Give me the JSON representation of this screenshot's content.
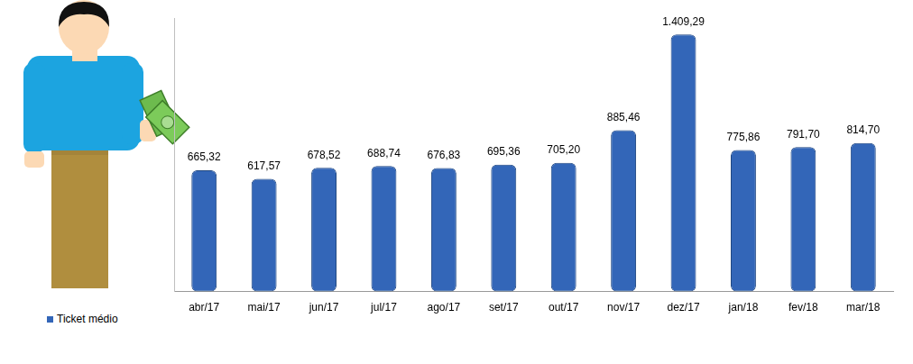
{
  "chart_data": {
    "type": "bar",
    "categories": [
      "abr/17",
      "mai/17",
      "jun/17",
      "jul/17",
      "ago/17",
      "set/17",
      "out/17",
      "nov/17",
      "dez/17",
      "jan/18",
      "fev/18",
      "mar/18"
    ],
    "series": [
      {
        "name": "Ticket médio",
        "color": "#3366b8",
        "values": [
          665.32,
          617.57,
          678.52,
          688.74,
          676.83,
          695.36,
          705.2,
          885.46,
          1409.29,
          775.86,
          791.7,
          814.7
        ],
        "value_labels": [
          "665,32",
          "617,57",
          "678,52",
          "688,74",
          "676,83",
          "695,36",
          "705,20",
          "885,46",
          "1.409,29",
          "775,86",
          "791,70",
          "814,70"
        ]
      }
    ],
    "ylim": [
      0,
      1500
    ],
    "grid": false,
    "legend": "bottom-left",
    "data_labels": true,
    "tick_labels": "x"
  }
}
